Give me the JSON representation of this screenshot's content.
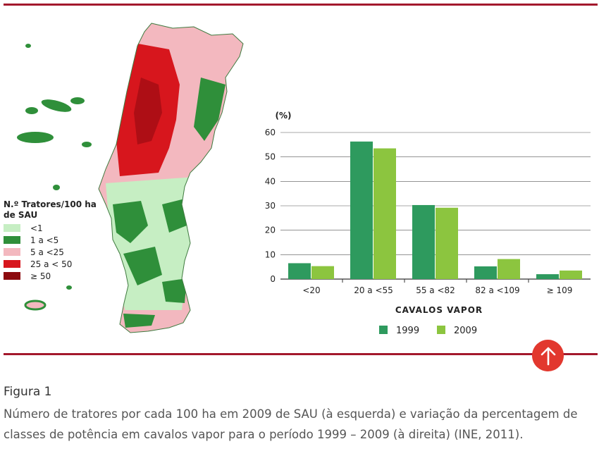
{
  "legend": {
    "title": "N.º Tratores/100 ha de SAU",
    "items": [
      {
        "label": "<1",
        "color": "#c6eec3"
      },
      {
        "label": "1 a <5",
        "color": "#2f8f3a"
      },
      {
        "label": "5 a <25",
        "color": "#f3b8bf"
      },
      {
        "label": "25 a < 50",
        "color": "#d7161d"
      },
      {
        "label": "≥ 50",
        "color": "#8c0a0e"
      }
    ]
  },
  "chart_data": {
    "type": "bar",
    "title": "",
    "ylabel": "(%)",
    "xlabel": "CAVALOS VAPOR",
    "categories": [
      "<20",
      "20 a <55",
      "55 a <82",
      "82 a <109",
      "≥ 109"
    ],
    "series": [
      {
        "name": "1999",
        "color": "#2e9a5e",
        "values": [
          6.5,
          56.3,
          30.3,
          5.2,
          2.0
        ]
      },
      {
        "name": "2009",
        "color": "#8cc53f",
        "values": [
          5.3,
          53.5,
          29.2,
          8.2,
          3.5
        ]
      }
    ],
    "ylim": [
      0,
      60
    ],
    "yticks": [
      0,
      10,
      20,
      30,
      40,
      50,
      60
    ],
    "grid": true,
    "legend_position": "bottom"
  },
  "caption": {
    "title": "Figura 1",
    "text": "Número de tratores por cada 100 ha em 2009 de SAU (à esquerda) e variação da percentagem de classes de potência em cavalos vapor para o período 1999 – 2009 (à direita) (INE, 2011)."
  },
  "icons": {
    "up_button": "arrow-up-icon"
  }
}
